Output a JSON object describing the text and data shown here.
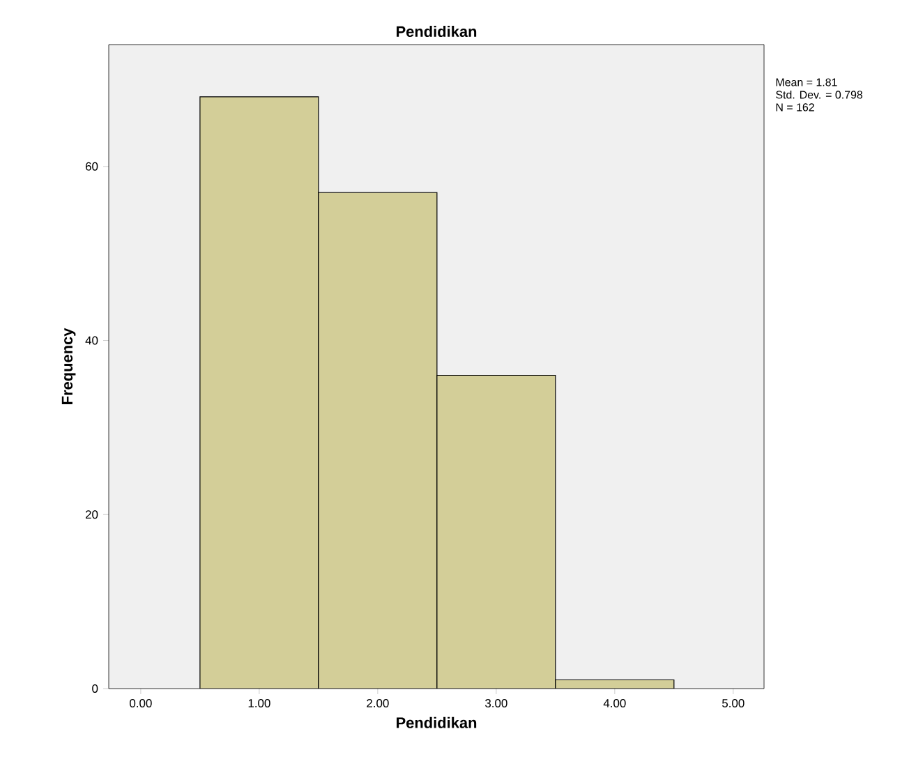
{
  "chart_data": {
    "type": "histogram",
    "title": "Pendidikan",
    "xlabel": "Pendidikan",
    "ylabel": "Frequency",
    "bins": [
      0.5,
      1.5,
      2.5,
      3.5,
      4.5
    ],
    "values": [
      68,
      57,
      36,
      1
    ],
    "color": "#d3ce98",
    "xlim": [
      -0.27,
      5.26
    ],
    "ylim": [
      0,
      74
    ],
    "xticks": [
      {
        "value": 0,
        "label": "0.00"
      },
      {
        "value": 1,
        "label": "1.00"
      },
      {
        "value": 2,
        "label": "2.00"
      },
      {
        "value": 3,
        "label": "3.00"
      },
      {
        "value": 4,
        "label": "4.00"
      },
      {
        "value": 5,
        "label": "5.00"
      }
    ],
    "yticks": [
      0,
      20,
      40,
      60
    ],
    "annotations": [
      "Mean = 1.81",
      "Std. Dev. = 0.798",
      "N = 162"
    ]
  }
}
